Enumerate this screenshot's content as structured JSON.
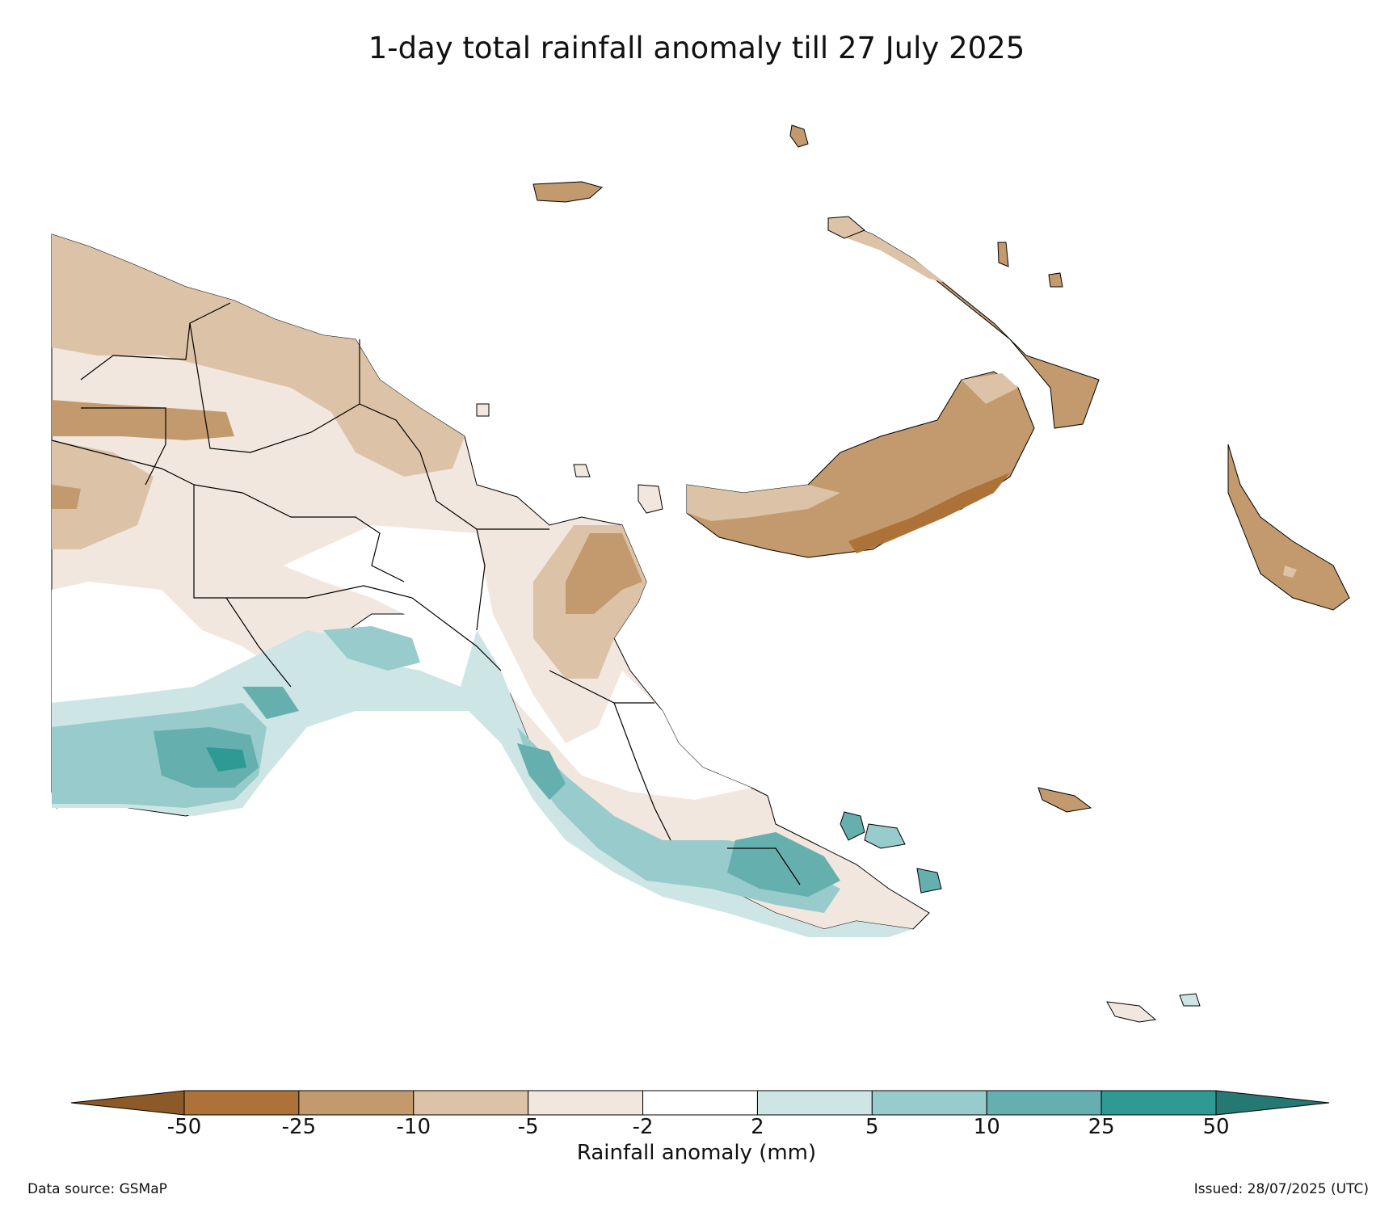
{
  "title": "1-day total rainfall anomaly till 27 July 2025",
  "colorbar": {
    "label": "Rainfall anomaly (mm)",
    "ticks": [
      "-50",
      "-25",
      "-10",
      "-5",
      "-2",
      "2",
      "5",
      "10",
      "25",
      "50"
    ],
    "colors": {
      "under": "#8c5a28",
      "bins": [
        "#ad7238",
        "#c39a6d",
        "#dcc2a6",
        "#f1e7de",
        "#ffffff",
        "#cde6e5",
        "#98cbcb",
        "#65afae",
        "#2f9994"
      ],
      "over": "#267873"
    }
  },
  "footer": {
    "source": "Data source: GSMaP",
    "issued": "Issued: 28/07/2025 (UTC)"
  }
}
